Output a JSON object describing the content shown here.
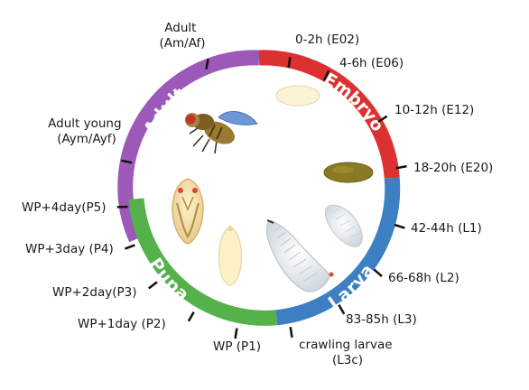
{
  "stages": [
    {
      "key": "adult",
      "label": "Adult",
      "color": "#9c59b8"
    },
    {
      "key": "embryo",
      "label": "Embryo",
      "color": "#dd3030"
    },
    {
      "key": "larva",
      "label": "Larva",
      "color": "#3c7fc2"
    },
    {
      "key": "pupa",
      "label": "Pupa",
      "color": "#55b24a"
    }
  ],
  "timepoints": [
    {
      "key": "adult",
      "lines": [
        "Adult",
        "(Am/Af)"
      ]
    },
    {
      "key": "e02",
      "lines": [
        "0-2h (E02)"
      ]
    },
    {
      "key": "e06",
      "lines": [
        "4-6h (E06)"
      ]
    },
    {
      "key": "e12",
      "lines": [
        "10-12h (E12)"
      ]
    },
    {
      "key": "e20",
      "lines": [
        "18-20h (E20)"
      ]
    },
    {
      "key": "l1",
      "lines": [
        "42-44h (L1)"
      ]
    },
    {
      "key": "l2",
      "lines": [
        "66-68h (L2)"
      ]
    },
    {
      "key": "l3",
      "lines": [
        "83-85h (L3)"
      ]
    },
    {
      "key": "l3c",
      "lines": [
        "crawling larvae",
        "(L3c)"
      ]
    },
    {
      "key": "p1",
      "lines": [
        "WP (P1)"
      ]
    },
    {
      "key": "p2",
      "lines": [
        "WP+1day (P2)"
      ]
    },
    {
      "key": "p3",
      "lines": [
        "WP+2day(P3)"
      ]
    },
    {
      "key": "p4",
      "lines": [
        "WP+3day (P4)"
      ]
    },
    {
      "key": "p5",
      "lines": [
        "WP+4day(P5)"
      ]
    },
    {
      "key": "ay",
      "lines": [
        "Adult young",
        "(Aym/Ayf)"
      ]
    }
  ]
}
